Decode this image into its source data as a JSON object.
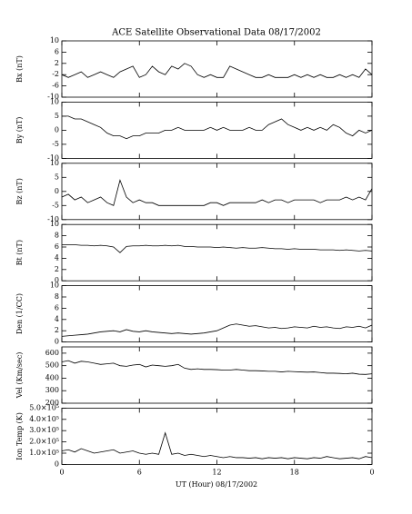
{
  "chart_data": [
    {
      "type": "line",
      "title": "ACE Satellite Observational Data   08/17/2002",
      "ylabel": "Bx (nT)",
      "color": "#000000",
      "x": [
        0,
        0.5,
        1,
        1.5,
        2,
        2.5,
        3,
        3.5,
        4,
        4.5,
        5,
        5.5,
        6,
        6.5,
        7,
        7.5,
        8,
        8.5,
        9,
        9.5,
        10,
        10.5,
        11,
        11.5,
        12,
        12.5,
        13,
        13.5,
        14,
        14.5,
        15,
        15.5,
        16,
        16.5,
        17,
        17.5,
        18,
        18.5,
        19,
        19.5,
        20,
        20.5,
        21,
        21.5,
        22,
        22.5,
        23,
        23.5,
        24
      ],
      "values": [
        -2,
        -3,
        -2,
        -1,
        -3,
        -2,
        -1,
        -2,
        -3,
        -1,
        0,
        1,
        -3,
        -2,
        1,
        -1,
        -2,
        1,
        0,
        2,
        1,
        -2,
        -3,
        -2,
        -3,
        -3,
        1,
        0,
        -1,
        -2,
        -3,
        -3,
        -2,
        -3,
        -3,
        -3,
        -2,
        -3,
        -2,
        -3,
        -2,
        -3,
        -3,
        -2,
        -3,
        -2,
        -3,
        0,
        -2
      ],
      "xlim": [
        0,
        24
      ],
      "ylim": [
        -10,
        10
      ],
      "yticks": [
        -10,
        -6,
        -2,
        2,
        6,
        10
      ]
    },
    {
      "type": "line",
      "ylabel": "By (nT)",
      "color": "#000000",
      "x": [
        0,
        0.5,
        1,
        1.5,
        2,
        2.5,
        3,
        3.5,
        4,
        4.5,
        5,
        5.5,
        6,
        6.5,
        7,
        7.5,
        8,
        8.5,
        9,
        9.5,
        10,
        10.5,
        11,
        11.5,
        12,
        12.5,
        13,
        13.5,
        14,
        14.5,
        15,
        15.5,
        16,
        16.5,
        17,
        17.5,
        18,
        18.5,
        19,
        19.5,
        20,
        20.5,
        21,
        21.5,
        22,
        22.5,
        23,
        23.5,
        24
      ],
      "values": [
        5,
        5,
        4,
        4,
        3,
        2,
        1,
        -1,
        -2,
        -2,
        -3,
        -2,
        -2,
        -1,
        -1,
        -1,
        0,
        0,
        1,
        0,
        0,
        0,
        0,
        1,
        0,
        1,
        0,
        0,
        0,
        1,
        0,
        0,
        2,
        3,
        4,
        2,
        1,
        0,
        1,
        0,
        1,
        0,
        2,
        1,
        -1,
        -2,
        0,
        -1,
        0
      ],
      "xlim": [
        0,
        24
      ],
      "ylim": [
        -10,
        10
      ],
      "yticks": [
        -10,
        -5,
        0,
        5,
        10
      ]
    },
    {
      "type": "line",
      "ylabel": "Bz (nT)",
      "color": "#000000",
      "x": [
        0,
        0.5,
        1,
        1.5,
        2,
        2.5,
        3,
        3.5,
        4,
        4.5,
        5,
        5.5,
        6,
        6.5,
        7,
        7.5,
        8,
        8.5,
        9,
        9.5,
        10,
        10.5,
        11,
        11.5,
        12,
        12.5,
        13,
        13.5,
        14,
        14.5,
        15,
        15.5,
        16,
        16.5,
        17,
        17.5,
        18,
        18.5,
        19,
        19.5,
        20,
        20.5,
        21,
        21.5,
        22,
        22.5,
        23,
        23.5,
        24
      ],
      "values": [
        -2,
        -1,
        -3,
        -2,
        -4,
        -3,
        -2,
        -4,
        -5,
        4,
        -2,
        -4,
        -3,
        -4,
        -4,
        -5,
        -5,
        -5,
        -5,
        -5,
        -5,
        -5,
        -5,
        -4,
        -4,
        -5,
        -4,
        -4,
        -4,
        -4,
        -4,
        -3,
        -4,
        -3,
        -3,
        -4,
        -3,
        -3,
        -3,
        -3,
        -4,
        -3,
        -3,
        -3,
        -2,
        -3,
        -2,
        -3,
        1
      ],
      "xlim": [
        0,
        24
      ],
      "ylim": [
        -10,
        10
      ],
      "yticks": [
        -10,
        -5,
        0,
        5,
        10
      ]
    },
    {
      "type": "line",
      "ylabel": "Bt (nT)",
      "color": "#000000",
      "x": [
        0,
        0.5,
        1,
        1.5,
        2,
        2.5,
        3,
        3.5,
        4,
        4.5,
        5,
        5.5,
        6,
        6.5,
        7,
        7.5,
        8,
        8.5,
        9,
        9.5,
        10,
        10.5,
        11,
        11.5,
        12,
        12.5,
        13,
        13.5,
        14,
        14.5,
        15,
        15.5,
        16,
        16.5,
        17,
        17.5,
        18,
        18.5,
        19,
        19.5,
        20,
        20.5,
        21,
        21.5,
        22,
        22.5,
        23,
        23.5,
        24
      ],
      "values": [
        6.4,
        6.4,
        6.4,
        6.3,
        6.3,
        6.2,
        6.3,
        6.2,
        6.0,
        5.0,
        6.1,
        6.2,
        6.2,
        6.3,
        6.2,
        6.2,
        6.3,
        6.2,
        6.3,
        6.1,
        6.1,
        6.0,
        6.0,
        6.0,
        5.9,
        6.0,
        5.9,
        5.8,
        5.9,
        5.8,
        5.8,
        5.9,
        5.8,
        5.7,
        5.7,
        5.6,
        5.7,
        5.6,
        5.6,
        5.6,
        5.5,
        5.5,
        5.5,
        5.4,
        5.5,
        5.4,
        5.3,
        5.4,
        5.3
      ],
      "xlim": [
        0,
        24
      ],
      "ylim": [
        0,
        10
      ],
      "yticks": [
        0,
        2,
        4,
        6,
        8,
        10
      ]
    },
    {
      "type": "line",
      "ylabel": "Den (1/CC)",
      "color": "#000000",
      "x": [
        0,
        0.5,
        1,
        1.5,
        2,
        2.5,
        3,
        3.5,
        4,
        4.5,
        5,
        5.5,
        6,
        6.5,
        7,
        7.5,
        8,
        8.5,
        9,
        9.5,
        10,
        10.5,
        11,
        11.5,
        12,
        12.5,
        13,
        13.5,
        14,
        14.5,
        15,
        15.5,
        16,
        16.5,
        17,
        17.5,
        18,
        18.5,
        19,
        19.5,
        20,
        20.5,
        21,
        21.5,
        22,
        22.5,
        23,
        23.5,
        24
      ],
      "values": [
        1.0,
        1.1,
        1.2,
        1.3,
        1.4,
        1.6,
        1.8,
        1.9,
        2.0,
        1.8,
        2.2,
        1.9,
        1.8,
        2.0,
        1.8,
        1.7,
        1.6,
        1.5,
        1.6,
        1.5,
        1.4,
        1.5,
        1.6,
        1.8,
        2.0,
        2.5,
        3.0,
        3.2,
        3.0,
        2.8,
        2.9,
        2.7,
        2.5,
        2.6,
        2.4,
        2.5,
        2.7,
        2.6,
        2.5,
        2.8,
        2.6,
        2.7,
        2.5,
        2.4,
        2.7,
        2.6,
        2.8,
        2.5,
        3.0
      ],
      "xlim": [
        0,
        24
      ],
      "ylim": [
        0,
        10
      ],
      "yticks": [
        0,
        2,
        4,
        6,
        8,
        10
      ]
    },
    {
      "type": "line",
      "ylabel": "Vel (Km/sec)",
      "color": "#000000",
      "x": [
        0,
        0.5,
        1,
        1.5,
        2,
        2.5,
        3,
        3.5,
        4,
        4.5,
        5,
        5.5,
        6,
        6.5,
        7,
        7.5,
        8,
        8.5,
        9,
        9.5,
        10,
        10.5,
        11,
        11.5,
        12,
        12.5,
        13,
        13.5,
        14,
        14.5,
        15,
        15.5,
        16,
        16.5,
        17,
        17.5,
        18,
        18.5,
        19,
        19.5,
        20,
        20.5,
        21,
        21.5,
        22,
        22.5,
        23,
        23.5,
        24
      ],
      "values": [
        530,
        540,
        520,
        535,
        530,
        520,
        510,
        515,
        520,
        500,
        495,
        505,
        510,
        490,
        505,
        500,
        495,
        500,
        510,
        480,
        470,
        475,
        470,
        470,
        468,
        465,
        465,
        470,
        465,
        460,
        460,
        458,
        455,
        455,
        450,
        455,
        452,
        450,
        448,
        450,
        445,
        440,
        440,
        438,
        435,
        440,
        432,
        430,
        435
      ],
      "xlim": [
        0,
        24
      ],
      "ylim": [
        200,
        650
      ],
      "yticks": [
        200,
        300,
        400,
        500,
        600
      ]
    },
    {
      "type": "line",
      "ylabel": "Ion Temp (K)",
      "xlabel": "UT (Hour)   08/17/2002",
      "color": "#000000",
      "x": [
        0,
        0.5,
        1,
        1.5,
        2,
        2.5,
        3,
        3.5,
        4,
        4.5,
        5,
        5.5,
        6,
        6.5,
        7,
        7.5,
        8,
        8.5,
        9,
        9.5,
        10,
        10.5,
        11,
        11.5,
        12,
        12.5,
        13,
        13.5,
        14,
        14.5,
        15,
        15.5,
        16,
        16.5,
        17,
        17.5,
        18,
        18.5,
        19,
        19.5,
        20,
        20.5,
        21,
        21.5,
        22,
        22.5,
        23,
        23.5,
        24
      ],
      "values": [
        120000,
        130000,
        110000,
        140000,
        120000,
        100000,
        110000,
        120000,
        130000,
        100000,
        110000,
        120000,
        100000,
        90000,
        100000,
        90000,
        280000,
        90000,
        100000,
        80000,
        90000,
        80000,
        70000,
        80000,
        70000,
        60000,
        70000,
        60000,
        60000,
        55000,
        60000,
        50000,
        60000,
        55000,
        60000,
        50000,
        60000,
        55000,
        50000,
        60000,
        55000,
        70000,
        60000,
        50000,
        55000,
        60000,
        50000,
        70000,
        60000
      ],
      "xlim": [
        0,
        24
      ],
      "ylim": [
        0,
        500000
      ],
      "yticks": [
        0,
        {
          "value": 100000,
          "label": "1.0×10⁵"
        },
        {
          "value": 200000,
          "label": "2.0×10⁵"
        },
        {
          "value": 300000,
          "label": "3.0×10⁵"
        },
        {
          "value": 400000,
          "label": "4.0×10⁵"
        },
        {
          "value": 500000,
          "label": "5.0×10⁵"
        }
      ],
      "xticks": [
        0,
        6,
        12,
        18,
        {
          "value": 24,
          "label": "0"
        }
      ]
    }
  ]
}
